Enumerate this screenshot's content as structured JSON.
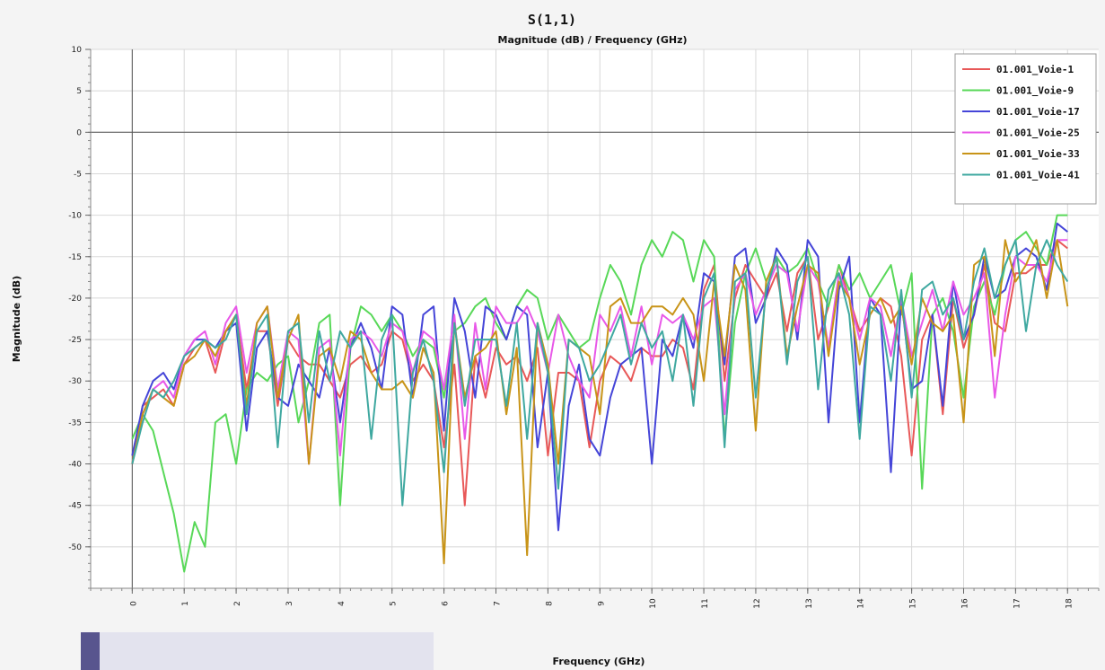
{
  "chart_data": {
    "type": "line",
    "title": "S(1,1)",
    "subtitle": "Magnitude (dB) / Frequency (GHz)",
    "xlabel": "Frequency (GHz)",
    "ylabel": "Magnitude (dB)",
    "xlim": [
      -0.8,
      18.6
    ],
    "ylim": [
      -55,
      10
    ],
    "xticks": [
      0,
      1,
      2,
      3,
      4,
      5,
      6,
      7,
      8,
      9,
      10,
      11,
      12,
      13,
      14,
      15,
      16,
      17,
      18
    ],
    "yticks": [
      10,
      5,
      0,
      -5,
      -10,
      -15,
      -20,
      -25,
      -30,
      -35,
      -40,
      -45,
      -50
    ],
    "grid": true,
    "legend_position": "top-right",
    "series": [
      {
        "name": "01.001_Voie-1",
        "color": "#e85858",
        "x": [
          0,
          0.2,
          0.4,
          0.6,
          0.8,
          1.0,
          1.2,
          1.4,
          1.6,
          1.8,
          2.0,
          2.2,
          2.4,
          2.6,
          2.8,
          3.0,
          3.2,
          3.4,
          3.6,
          3.8,
          4.0,
          4.2,
          4.4,
          4.6,
          4.8,
          5.0,
          5.2,
          5.4,
          5.6,
          5.8,
          6.0,
          6.2,
          6.4,
          6.6,
          6.8,
          7.0,
          7.2,
          7.4,
          7.6,
          7.8,
          8.0,
          8.2,
          8.4,
          8.6,
          8.8,
          9.0,
          9.2,
          9.4,
          9.6,
          9.8,
          10.0,
          10.2,
          10.4,
          10.6,
          10.8,
          11.0,
          11.2,
          11.4,
          11.6,
          11.8,
          12.0,
          12.2,
          12.4,
          12.6,
          12.8,
          13.0,
          13.2,
          13.4,
          13.6,
          13.8,
          14.0,
          14.2,
          14.4,
          14.6,
          14.8,
          15.0,
          15.2,
          15.4,
          15.6,
          15.8,
          16.0,
          16.2,
          16.4,
          16.6,
          16.8,
          17.0,
          17.2,
          17.4,
          17.6,
          17.8,
          18.0
        ],
        "y": [
          -40,
          -33,
          -32,
          -31,
          -33,
          -28,
          -26,
          -25,
          -29,
          -24,
          -22,
          -31,
          -24,
          -24,
          -33,
          -25,
          -27,
          -28,
          -28,
          -30,
          -32,
          -28,
          -27,
          -29,
          -28,
          -24,
          -25,
          -30,
          -28,
          -30,
          -38,
          -28,
          -45,
          -27,
          -32,
          -26,
          -28,
          -27,
          -30,
          -26,
          -39,
          -29,
          -29,
          -30,
          -38,
          -30,
          -27,
          -28,
          -30,
          -26,
          -27,
          -27,
          -25,
          -26,
          -31,
          -19,
          -16,
          -30,
          -20,
          -16,
          -18,
          -20,
          -17,
          -24,
          -17,
          -15,
          -25,
          -21,
          -16,
          -20,
          -24,
          -22,
          -20,
          -21,
          -27,
          -39,
          -25,
          -22,
          -34,
          -20,
          -26,
          -22,
          -16,
          -23,
          -24,
          -17,
          -17,
          -16,
          -16,
          -13,
          -14
        ]
      },
      {
        "name": "01.001_Voie-9",
        "color": "#58d858",
        "x": [
          0,
          0.2,
          0.4,
          0.6,
          0.8,
          1.0,
          1.2,
          1.4,
          1.6,
          1.8,
          2.0,
          2.2,
          2.4,
          2.6,
          2.8,
          3.0,
          3.2,
          3.4,
          3.6,
          3.8,
          4.0,
          4.2,
          4.4,
          4.6,
          4.8,
          5.0,
          5.2,
          5.4,
          5.6,
          5.8,
          6.0,
          6.2,
          6.4,
          6.6,
          6.8,
          7.0,
          7.2,
          7.4,
          7.6,
          7.8,
          8.0,
          8.2,
          8.4,
          8.6,
          8.8,
          9.0,
          9.2,
          9.4,
          9.6,
          9.8,
          10.0,
          10.2,
          10.4,
          10.6,
          10.8,
          11.0,
          11.2,
          11.4,
          11.6,
          11.8,
          12.0,
          12.2,
          12.4,
          12.6,
          12.8,
          13.0,
          13.2,
          13.4,
          13.6,
          13.8,
          14.0,
          14.2,
          14.4,
          14.6,
          14.8,
          15.0,
          15.2,
          15.4,
          15.6,
          15.8,
          16.0,
          16.2,
          16.4,
          16.6,
          16.8,
          17.0,
          17.2,
          17.4,
          17.6,
          17.8,
          18.0
        ],
        "y": [
          -37,
          -34,
          -36,
          -41,
          -46,
          -53,
          -47,
          -50,
          -35,
          -34,
          -40,
          -31,
          -29,
          -30,
          -28,
          -27,
          -35,
          -30,
          -23,
          -22,
          -45,
          -26,
          -21,
          -22,
          -24,
          -22,
          -24,
          -27,
          -25,
          -26,
          -32,
          -24,
          -23,
          -21,
          -20,
          -23,
          -25,
          -21,
          -19,
          -20,
          -25,
          -22,
          -24,
          -26,
          -25,
          -20,
          -16,
          -18,
          -22,
          -16,
          -13,
          -15,
          -12,
          -13,
          -18,
          -13,
          -15,
          -37,
          -23,
          -17,
          -14,
          -18,
          -15,
          -17,
          -16,
          -14,
          -18,
          -21,
          -16,
          -19,
          -17,
          -20,
          -18,
          -16,
          -22,
          -17,
          -43,
          -22,
          -20,
          -24,
          -32,
          -21,
          -18,
          -22,
          -16,
          -13,
          -12,
          -14,
          -16,
          -10,
          -10
        ]
      },
      {
        "name": "01.001_Voie-17",
        "color": "#4545d8",
        "x": [
          0,
          0.2,
          0.4,
          0.6,
          0.8,
          1.0,
          1.2,
          1.4,
          1.6,
          1.8,
          2.0,
          2.2,
          2.4,
          2.6,
          2.8,
          3.0,
          3.2,
          3.4,
          3.6,
          3.8,
          4.0,
          4.2,
          4.4,
          4.6,
          4.8,
          5.0,
          5.2,
          5.4,
          5.6,
          5.8,
          6.0,
          6.2,
          6.4,
          6.6,
          6.8,
          7.0,
          7.2,
          7.4,
          7.6,
          7.8,
          8.0,
          8.2,
          8.4,
          8.6,
          8.8,
          9.0,
          9.2,
          9.4,
          9.6,
          9.8,
          10.0,
          10.2,
          10.4,
          10.6,
          10.8,
          11.0,
          11.2,
          11.4,
          11.6,
          11.8,
          12.0,
          12.2,
          12.4,
          12.6,
          12.8,
          13.0,
          13.2,
          13.4,
          13.6,
          13.8,
          14.0,
          14.2,
          14.4,
          14.6,
          14.8,
          15.0,
          15.2,
          15.4,
          15.6,
          15.8,
          16.0,
          16.2,
          16.4,
          16.6,
          16.8,
          17.0,
          17.2,
          17.4,
          17.6,
          17.8,
          18.0
        ],
        "y": [
          -39,
          -33,
          -30,
          -29,
          -31,
          -27,
          -25,
          -25,
          -26,
          -24,
          -23,
          -36,
          -26,
          -24,
          -32,
          -33,
          -28,
          -30,
          -32,
          -26,
          -35,
          -26,
          -23,
          -26,
          -31,
          -21,
          -22,
          -32,
          -22,
          -21,
          -36,
          -20,
          -24,
          -32,
          -21,
          -22,
          -25,
          -21,
          -22,
          -38,
          -29,
          -48,
          -33,
          -28,
          -37,
          -39,
          -32,
          -28,
          -27,
          -26,
          -40,
          -25,
          -27,
          -22,
          -26,
          -17,
          -18,
          -28,
          -15,
          -14,
          -23,
          -20,
          -14,
          -16,
          -25,
          -13,
          -15,
          -35,
          -19,
          -15,
          -35,
          -20,
          -22,
          -41,
          -20,
          -31,
          -30,
          -22,
          -33,
          -18,
          -25,
          -22,
          -15,
          -20,
          -19,
          -15,
          -14,
          -15,
          -19,
          -11,
          -12
        ]
      },
      {
        "name": "01.001_Voie-25",
        "color": "#e858e8",
        "x": [
          0,
          0.2,
          0.4,
          0.6,
          0.8,
          1.0,
          1.2,
          1.4,
          1.6,
          1.8,
          2.0,
          2.2,
          2.4,
          2.6,
          2.8,
          3.0,
          3.2,
          3.4,
          3.6,
          3.8,
          4.0,
          4.2,
          4.4,
          4.6,
          4.8,
          5.0,
          5.2,
          5.4,
          5.6,
          5.8,
          6.0,
          6.2,
          6.4,
          6.6,
          6.8,
          7.0,
          7.2,
          7.4,
          7.6,
          7.8,
          8.0,
          8.2,
          8.4,
          8.6,
          8.8,
          9.0,
          9.2,
          9.4,
          9.6,
          9.8,
          10.0,
          10.2,
          10.4,
          10.6,
          10.8,
          11.0,
          11.2,
          11.4,
          11.6,
          11.8,
          12.0,
          12.2,
          12.4,
          12.6,
          12.8,
          13.0,
          13.2,
          13.4,
          13.6,
          13.8,
          14.0,
          14.2,
          14.4,
          14.6,
          14.8,
          15.0,
          15.2,
          15.4,
          15.6,
          15.8,
          16.0,
          16.2,
          16.4,
          16.6,
          16.8,
          17.0,
          17.2,
          17.4,
          17.6,
          17.8,
          18.0
        ],
        "y": [
          -40,
          -34,
          -31,
          -30,
          -32,
          -27,
          -25,
          -24,
          -28,
          -23,
          -21,
          -29,
          -23,
          -21,
          -31,
          -24,
          -25,
          -40,
          -26,
          -25,
          -39,
          -25,
          -24,
          -25,
          -27,
          -23,
          -24,
          -29,
          -24,
          -25,
          -31,
          -22,
          -37,
          -23,
          -31,
          -21,
          -23,
          -23,
          -21,
          -24,
          -29,
          -22,
          -27,
          -30,
          -32,
          -22,
          -24,
          -21,
          -27,
          -21,
          -28,
          -22,
          -23,
          -22,
          -25,
          -21,
          -20,
          -34,
          -19,
          -17,
          -22,
          -19,
          -16,
          -17,
          -24,
          -16,
          -18,
          -26,
          -17,
          -20,
          -25,
          -20,
          -21,
          -27,
          -20,
          -27,
          -23,
          -19,
          -24,
          -18,
          -22,
          -20,
          -17,
          -32,
          -22,
          -15,
          -16,
          -16,
          -18,
          -13,
          -13
        ]
      },
      {
        "name": "01.001_Voie-33",
        "color": "#c89418",
        "x": [
          0,
          0.2,
          0.4,
          0.6,
          0.8,
          1.0,
          1.2,
          1.4,
          1.6,
          1.8,
          2.0,
          2.2,
          2.4,
          2.6,
          2.8,
          3.0,
          3.2,
          3.4,
          3.6,
          3.8,
          4.0,
          4.2,
          4.4,
          4.6,
          4.8,
          5.0,
          5.2,
          5.4,
          5.6,
          5.8,
          6.0,
          6.2,
          6.4,
          6.6,
          6.8,
          7.0,
          7.2,
          7.4,
          7.6,
          7.8,
          8.0,
          8.2,
          8.4,
          8.6,
          8.8,
          9.0,
          9.2,
          9.4,
          9.6,
          9.8,
          10.0,
          10.2,
          10.4,
          10.6,
          10.8,
          11.0,
          11.2,
          11.4,
          11.6,
          11.8,
          12.0,
          12.2,
          12.4,
          12.6,
          12.8,
          13.0,
          13.2,
          13.4,
          13.6,
          13.8,
          14.0,
          14.2,
          14.4,
          14.6,
          14.8,
          15.0,
          15.2,
          15.4,
          15.6,
          15.8,
          16.0,
          16.2,
          16.4,
          16.6,
          16.8,
          17.0,
          17.2,
          17.4,
          17.6,
          17.8,
          18.0
        ],
        "y": [
          -40,
          -34,
          -31,
          -32,
          -33,
          -28,
          -27,
          -25,
          -27,
          -24,
          -22,
          -33,
          -23,
          -21,
          -32,
          -25,
          -22,
          -40,
          -27,
          -26,
          -30,
          -24,
          -25,
          -29,
          -31,
          -31,
          -30,
          -32,
          -26,
          -29,
          -52,
          -23,
          -32,
          -27,
          -26,
          -24,
          -34,
          -26,
          -51,
          -23,
          -28,
          -40,
          -25,
          -26,
          -27,
          -34,
          -21,
          -20,
          -23,
          -23,
          -21,
          -21,
          -22,
          -20,
          -22,
          -30,
          -18,
          -27,
          -16,
          -19,
          -36,
          -18,
          -15,
          -27,
          -21,
          -16,
          -17,
          -27,
          -18,
          -20,
          -28,
          -22,
          -20,
          -23,
          -21,
          -28,
          -20,
          -23,
          -24,
          -22,
          -35,
          -16,
          -15,
          -27,
          -13,
          -18,
          -16,
          -13,
          -20,
          -13,
          -21
        ]
      },
      {
        "name": "01.001_Voie-41",
        "color": "#3fa8a0",
        "x": [
          0,
          0.2,
          0.4,
          0.6,
          0.8,
          1.0,
          1.2,
          1.4,
          1.6,
          1.8,
          2.0,
          2.2,
          2.4,
          2.6,
          2.8,
          3.0,
          3.2,
          3.4,
          3.6,
          3.8,
          4.0,
          4.2,
          4.4,
          4.6,
          4.8,
          5.0,
          5.2,
          5.4,
          5.6,
          5.8,
          6.0,
          6.2,
          6.4,
          6.6,
          6.8,
          7.0,
          7.2,
          7.4,
          7.6,
          7.8,
          8.0,
          8.2,
          8.4,
          8.6,
          8.8,
          9.0,
          9.2,
          9.4,
          9.6,
          9.8,
          10.0,
          10.2,
          10.4,
          10.6,
          10.8,
          11.0,
          11.2,
          11.4,
          11.6,
          11.8,
          12.0,
          12.2,
          12.4,
          12.6,
          12.8,
          13.0,
          13.2,
          13.4,
          13.6,
          13.8,
          14.0,
          14.2,
          14.4,
          14.6,
          14.8,
          15.0,
          15.2,
          15.4,
          15.6,
          15.8,
          16.0,
          16.2,
          16.4,
          16.6,
          16.8,
          17.0,
          17.2,
          17.4,
          17.6,
          17.8,
          18.0
        ],
        "y": [
          -40,
          -35,
          -31,
          -32,
          -30,
          -27,
          -26,
          -25,
          -26,
          -25,
          -22,
          -34,
          -24,
          -22,
          -38,
          -24,
          -23,
          -35,
          -24,
          -30,
          -24,
          -26,
          -24,
          -37,
          -25,
          -22,
          -45,
          -29,
          -25,
          -30,
          -41,
          -23,
          -33,
          -25,
          -25,
          -25,
          -33,
          -23,
          -37,
          -23,
          -29,
          -43,
          -25,
          -26,
          -30,
          -28,
          -25,
          -22,
          -28,
          -23,
          -26,
          -24,
          -30,
          -22,
          -33,
          -20,
          -17,
          -38,
          -18,
          -17,
          -32,
          -19,
          -15,
          -28,
          -18,
          -15,
          -31,
          -19,
          -17,
          -22,
          -37,
          -21,
          -22,
          -30,
          -19,
          -32,
          -19,
          -18,
          -22,
          -20,
          -25,
          -18,
          -14,
          -20,
          -16,
          -13,
          -24,
          -16,
          -13,
          -16,
          -18
        ]
      }
    ]
  }
}
